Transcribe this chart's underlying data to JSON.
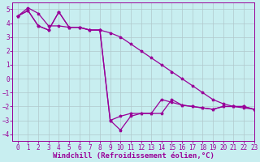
{
  "background_color": "#c8eef0",
  "grid_color": "#b0c8cc",
  "line_color": "#990099",
  "xlim": [
    -0.5,
    23
  ],
  "ylim": [
    -4.5,
    5.5
  ],
  "yticks": [
    -4,
    -3,
    -2,
    -1,
    0,
    1,
    2,
    3,
    4,
    5
  ],
  "xticks": [
    0,
    1,
    2,
    3,
    4,
    5,
    6,
    7,
    8,
    9,
    10,
    11,
    12,
    13,
    14,
    15,
    16,
    17,
    18,
    19,
    20,
    21,
    22,
    23
  ],
  "xlabel": "Windchill (Refroidissement éolien,°C)",
  "series1": [
    4.5,
    5.1,
    4.7,
    3.8,
    3.8,
    3.7,
    3.7,
    3.5,
    3.5,
    3.3,
    3.0,
    2.5,
    2.0,
    1.5,
    1.0,
    0.5,
    0.0,
    -0.5,
    -1.0,
    -1.5,
    -1.8,
    -2.0,
    -2.1,
    -2.2
  ],
  "series2": [
    4.5,
    4.9,
    3.8,
    3.5,
    4.8,
    3.7,
    3.7,
    3.5,
    3.5,
    -3.0,
    -2.7,
    -2.5,
    -2.5,
    -2.5,
    -1.5,
    -1.7,
    -1.9,
    -2.0,
    -2.1,
    -2.2,
    -2.0,
    -2.0,
    -2.0,
    -2.2
  ],
  "series3": [
    4.5,
    4.9,
    3.8,
    3.5,
    4.8,
    3.7,
    3.7,
    3.5,
    3.5,
    -3.0,
    -3.7,
    -2.7,
    -2.5,
    -2.5,
    -2.5,
    -1.5,
    -1.9,
    -2.0,
    -2.1,
    -2.2,
    -2.0,
    -2.0,
    -2.0,
    -2.2
  ],
  "xlabel_fontsize": 6.5,
  "tick_fontsize": 5.5
}
